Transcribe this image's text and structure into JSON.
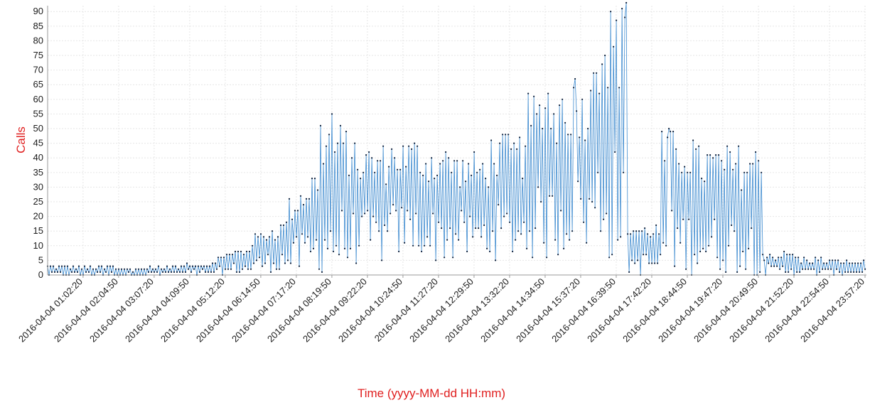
{
  "chart_data": {
    "type": "line",
    "title": "",
    "xlabel": "Time (yyyy-MM-dd HH:mm)",
    "ylabel": "Calls",
    "ylim": [
      0,
      92
    ],
    "yticks": [
      0,
      5,
      10,
      15,
      20,
      25,
      30,
      35,
      40,
      45,
      50,
      55,
      60,
      65,
      70,
      75,
      80,
      85,
      90
    ],
    "xtick_labels": [
      "2016-04-04 01:02:20",
      "2016-04-04 02:04:50",
      "2016-04-04 03:07:20",
      "2016-04-04 04:09:50",
      "2016-04-04 05:12:20",
      "2016-04-04 06:14:50",
      "2016-04-04 07:17:20",
      "2016-04-04 08:19:50",
      "2016-04-04 09:22:20",
      "2016-04-04 10:24:50",
      "2016-04-04 11:27:20",
      "2016-04-04 12:29:50",
      "2016-04-04 13:32:20",
      "2016-04-04 14:34:50",
      "2016-04-04 15:37:20",
      "2016-04-04 16:39:50",
      "2016-04-04 17:42:20",
      "2016-04-04 18:44:50",
      "2016-04-04 19:47:20",
      "2016-04-04 20:49:50",
      "2016-04-04 21:52:20",
      "2016-04-04 22:54:50",
      "2016-04-04 23:57:20"
    ],
    "x_range": [
      "2016-04-04 00:00:00",
      "2016-04-04 23:59:50"
    ],
    "grid": true,
    "legend": "none",
    "line_color": "#1f78c8",
    "marker_color": "#0b1e3a",
    "series": [
      {
        "values_by_hour_min_max": [
          {
            "hour": "00:00",
            "low": 0,
            "high": 3
          },
          {
            "hour": "01:00",
            "low": 0,
            "high": 3
          },
          {
            "hour": "02:00",
            "low": 0,
            "high": 2
          },
          {
            "hour": "03:00",
            "low": 0,
            "high": 3
          },
          {
            "hour": "04:00",
            "low": 0,
            "high": 4
          },
          {
            "hour": "05:00",
            "low": 0,
            "high": 7
          },
          {
            "hour": "06:00",
            "low": 1,
            "high": 14
          },
          {
            "hour": "07:00",
            "low": 0,
            "high": 25
          },
          {
            "hour": "08:00",
            "low": 0,
            "high": 55
          },
          {
            "hour": "09:00",
            "low": 3,
            "high": 45
          },
          {
            "hour": "10:00",
            "low": 6,
            "high": 47
          },
          {
            "hour": "11:00",
            "low": 4,
            "high": 45
          },
          {
            "hour": "12:00",
            "low": 5,
            "high": 42
          },
          {
            "hour": "13:00",
            "low": 5,
            "high": 48
          },
          {
            "hour": "14:00",
            "low": 5,
            "high": 62
          },
          {
            "hour": "15:00",
            "low": 7,
            "high": 67
          },
          {
            "hour": "16:00",
            "low": 4,
            "high": 93
          },
          {
            "hour": "17:00",
            "low": 0,
            "high": 18
          },
          {
            "hour": "18:00",
            "low": 0,
            "high": 50
          },
          {
            "hour": "19:00",
            "low": 0,
            "high": 45
          },
          {
            "hour": "20:00",
            "low": 0,
            "high": 45
          },
          {
            "hour": "21:00",
            "low": 0,
            "high": 8
          },
          {
            "hour": "22:00",
            "low": 0,
            "high": 6
          },
          {
            "hour": "23:00",
            "low": 0,
            "high": 5
          }
        ]
      }
    ]
  }
}
